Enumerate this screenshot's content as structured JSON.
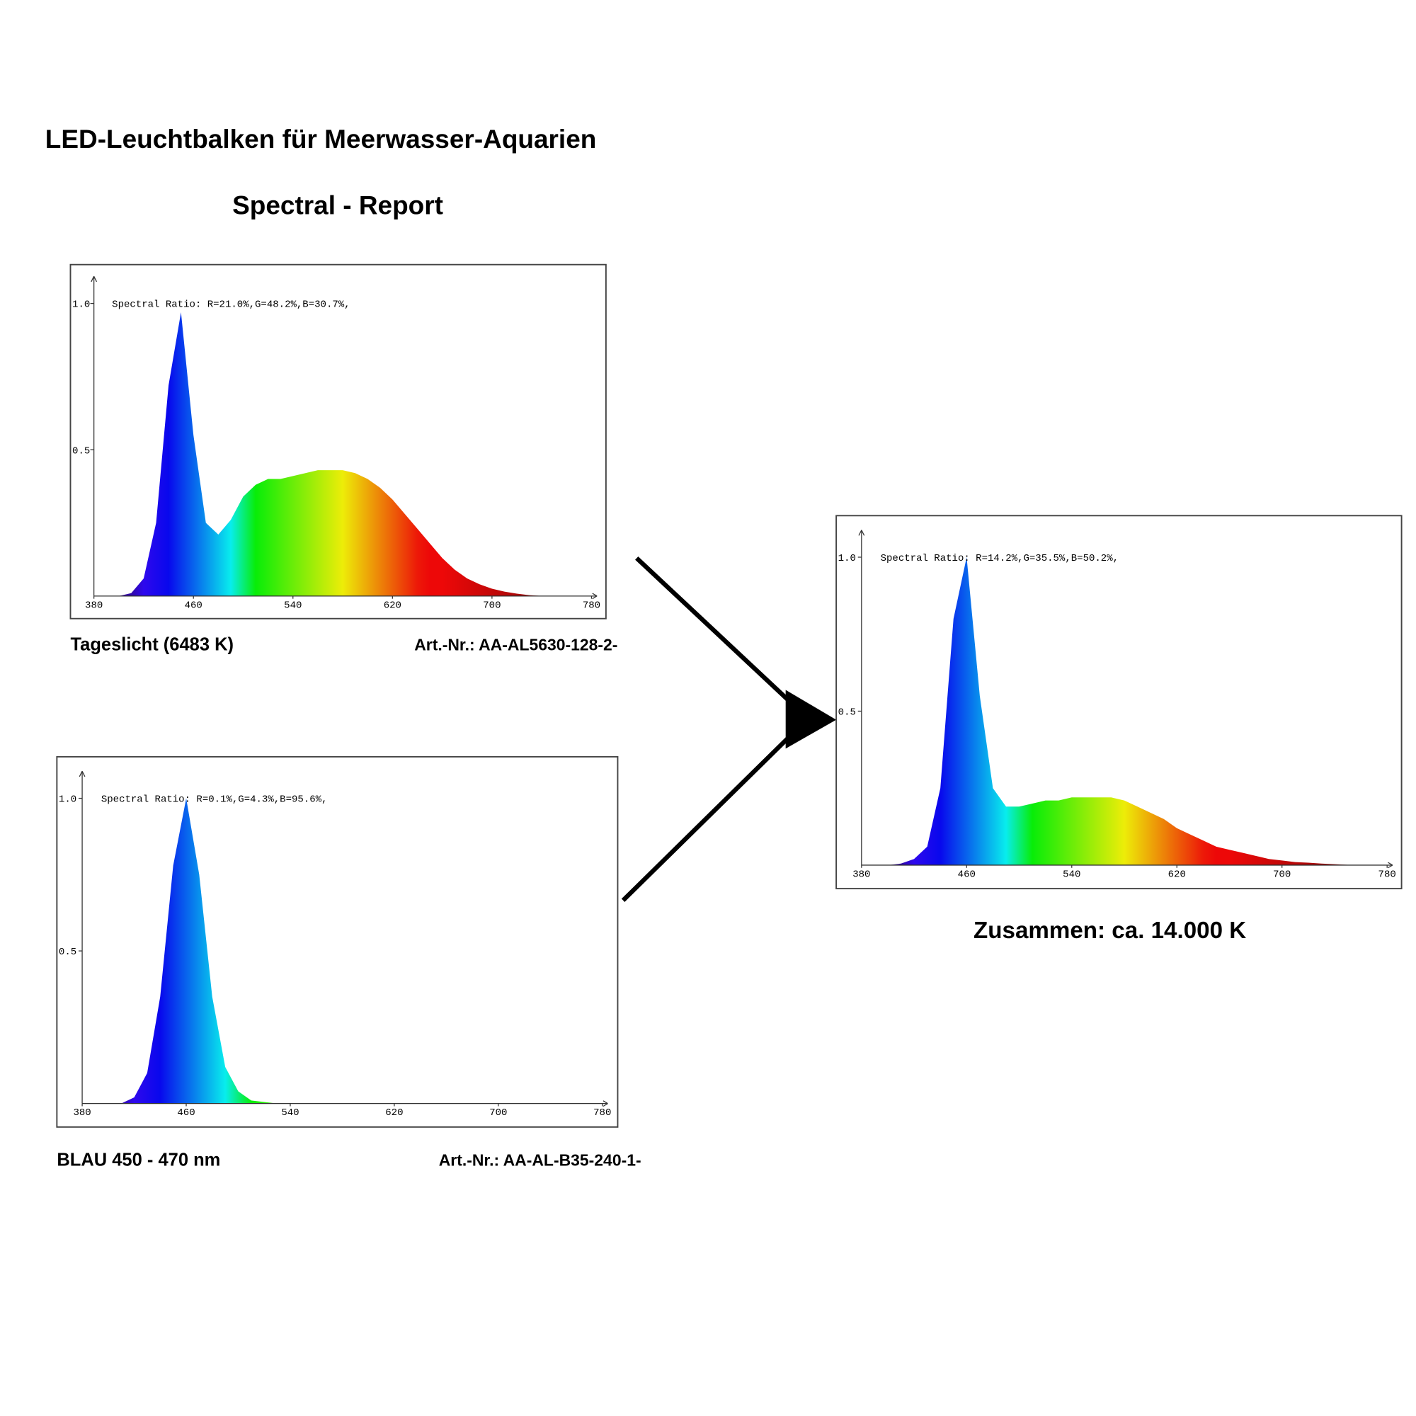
{
  "header": {
    "title": "LED-Leuchtbalken für Meerwasser-Aquarien",
    "subtitle": "Spectral - Report"
  },
  "chart_data": [
    {
      "type": "area",
      "annotation": "Spectral Ratio:  R=21.0%,G=48.2%,B=30.7%,",
      "caption": "Tageslicht (6483 K)",
      "article": "Art.-Nr.: AA-AL5630-128-2-",
      "x": [
        380,
        390,
        400,
        410,
        420,
        430,
        440,
        450,
        460,
        470,
        480,
        490,
        500,
        510,
        520,
        530,
        540,
        550,
        560,
        570,
        580,
        590,
        600,
        610,
        620,
        630,
        640,
        650,
        660,
        670,
        680,
        690,
        700,
        710,
        720,
        730,
        740,
        750,
        760,
        770,
        780
      ],
      "values": [
        0,
        0,
        0,
        0.01,
        0.06,
        0.25,
        0.72,
        0.97,
        0.55,
        0.25,
        0.21,
        0.26,
        0.34,
        0.38,
        0.4,
        0.4,
        0.41,
        0.42,
        0.43,
        0.43,
        0.43,
        0.42,
        0.4,
        0.37,
        0.33,
        0.28,
        0.23,
        0.18,
        0.13,
        0.09,
        0.06,
        0.04,
        0.025,
        0.015,
        0.008,
        0.003,
        0,
        0,
        0,
        0,
        0
      ],
      "xlim": [
        380,
        780
      ],
      "xticks": [
        380,
        460,
        540,
        620,
        700,
        780
      ],
      "ylim": [
        0,
        1
      ],
      "yticks": [
        0.5,
        {
          "value": 1,
          "label": "1.0"
        }
      ]
    },
    {
      "type": "area",
      "annotation": "Spectral Ratio:  R=0.1%,G=4.3%,B=95.6%,",
      "caption": "BLAU 450 - 470 nm",
      "article": "Art.-Nr.: AA-AL-B35-240-1-",
      "x": [
        380,
        390,
        400,
        410,
        420,
        430,
        440,
        450,
        460,
        470,
        480,
        490,
        500,
        510,
        520,
        530,
        540,
        550,
        560,
        570,
        580,
        590,
        600,
        610,
        620,
        630,
        640,
        650,
        660,
        670,
        680,
        690,
        700,
        710,
        720,
        730,
        740,
        750,
        760,
        770,
        780
      ],
      "values": [
        0,
        0,
        0,
        0,
        0.02,
        0.1,
        0.35,
        0.78,
        1,
        0.75,
        0.35,
        0.12,
        0.04,
        0.01,
        0.005,
        0,
        0,
        0,
        0,
        0,
        0,
        0,
        0,
        0,
        0,
        0,
        0,
        0,
        0,
        0,
        0,
        0,
        0,
        0,
        0,
        0,
        0,
        0,
        0,
        0,
        0
      ],
      "xlim": [
        380,
        780
      ],
      "xticks": [
        380,
        460,
        540,
        620,
        700,
        780
      ],
      "ylim": [
        0,
        1
      ],
      "yticks": [
        0.5,
        {
          "value": 1,
          "label": "1.0"
        }
      ]
    },
    {
      "type": "area",
      "annotation": "Spectral Ratio:  R=14.2%,G=35.5%,B=50.2%,",
      "caption": "Zusammen: ca. 14.000 K",
      "x": [
        380,
        390,
        400,
        410,
        420,
        430,
        440,
        450,
        460,
        470,
        480,
        490,
        500,
        510,
        520,
        530,
        540,
        550,
        560,
        570,
        580,
        590,
        600,
        610,
        620,
        630,
        640,
        650,
        660,
        670,
        680,
        690,
        700,
        710,
        720,
        730,
        740,
        750,
        760,
        770,
        780
      ],
      "values": [
        0,
        0,
        0,
        0.005,
        0.02,
        0.06,
        0.25,
        0.8,
        1,
        0.55,
        0.25,
        0.19,
        0.19,
        0.2,
        0.21,
        0.21,
        0.22,
        0.22,
        0.22,
        0.22,
        0.21,
        0.19,
        0.17,
        0.15,
        0.12,
        0.1,
        0.08,
        0.06,
        0.05,
        0.04,
        0.03,
        0.02,
        0.015,
        0.01,
        0.008,
        0.005,
        0.003,
        0.001,
        0,
        0,
        0
      ],
      "xlim": [
        380,
        780
      ],
      "xticks": [
        380,
        460,
        540,
        620,
        700,
        780
      ],
      "ylim": [
        0,
        1
      ],
      "yticks": [
        0.5,
        {
          "value": 1,
          "label": "1.0"
        }
      ]
    }
  ]
}
